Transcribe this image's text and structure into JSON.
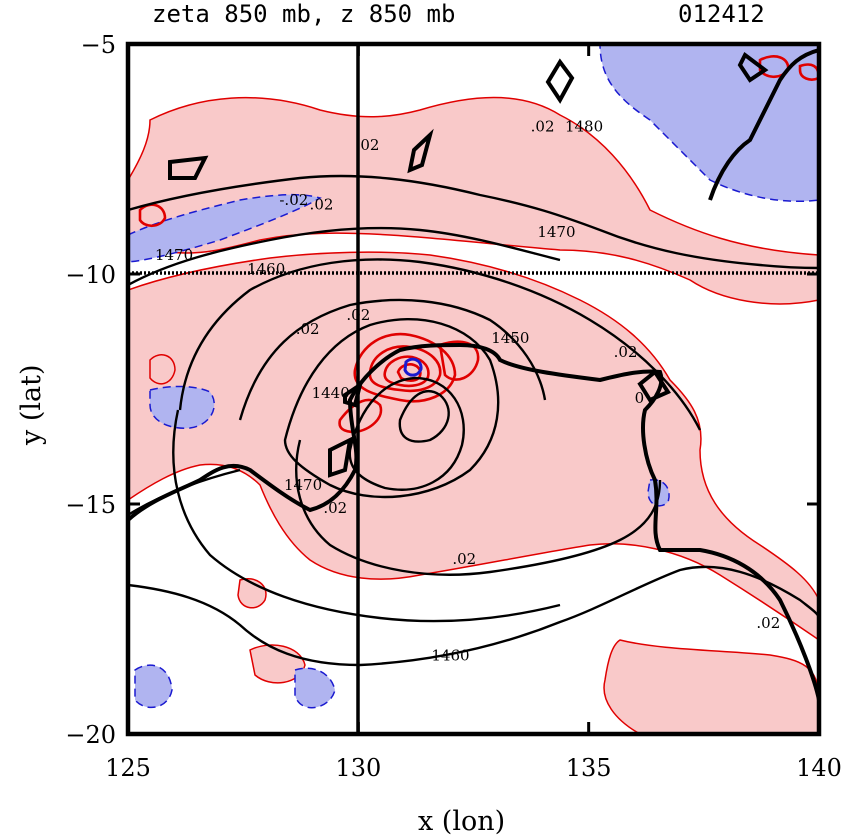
{
  "chart_data": {
    "type": "contour",
    "title": "zeta 850 mb, z 850 mb",
    "timestamp": "012412",
    "xlabel": "x (lon)",
    "ylabel": "y (lat)",
    "xlim": [
      125,
      140
    ],
    "ylim": [
      -20,
      -5
    ],
    "xticks": [
      125,
      130,
      135,
      140
    ],
    "yticks": [
      -5,
      -10,
      -15,
      -20
    ],
    "crosshair": {
      "lon": 130,
      "lat": -10
    },
    "series": [
      {
        "name": "z 850 mb",
        "contour_values": [
          1440,
          1450,
          1460,
          1470,
          1480
        ]
      },
      {
        "name": "zeta 850 mb",
        "contour_values": [
          0.02,
          -0.02
        ]
      }
    ],
    "contour_labels": [
      {
        "text": "1480",
        "lon": 134.9,
        "lat": -6.9
      },
      {
        "text": "1470",
        "lon": 134.3,
        "lat": -9.2
      },
      {
        "text": "1470",
        "lon": 126.0,
        "lat": -9.7
      },
      {
        "text": "1460",
        "lon": 128.0,
        "lat": -10.0
      },
      {
        "text": "1450",
        "lon": 133.3,
        "lat": -11.5
      },
      {
        "text": "1440",
        "lon": 129.4,
        "lat": -12.7
      },
      {
        "text": "1470",
        "lon": 128.8,
        "lat": -14.7
      },
      {
        "text": "1460",
        "lon": 132.0,
        "lat": -18.4
      },
      {
        "text": ".02",
        "lon": 130.2,
        "lat": -7.3
      },
      {
        "text": ".02",
        "lon": 134.0,
        "lat": -6.9
      },
      {
        "text": "-.02",
        "lon": 128.6,
        "lat": -8.5
      },
      {
        "text": ".02",
        "lon": 129.2,
        "lat": -8.6
      },
      {
        "text": ".02",
        "lon": 128.9,
        "lat": -11.3
      },
      {
        "text": ".02",
        "lon": 130.0,
        "lat": -11.0
      },
      {
        "text": ".02",
        "lon": 135.8,
        "lat": -11.8
      },
      {
        "text": ".02",
        "lon": 132.3,
        "lat": -16.3
      },
      {
        "text": ".02",
        "lon": 138.9,
        "lat": -17.7
      },
      {
        "text": ".02",
        "lon": 129.5,
        "lat": -15.2
      },
      {
        "text": "0",
        "lon": 136.1,
        "lat": -12.8
      }
    ],
    "colors": {
      "positive_fill": "#f9c9c9",
      "positive_line": "#e00000",
      "negative_fill": "#b0b4f0",
      "negative_line": "#1a1ad0",
      "height_line": "#000000"
    }
  }
}
